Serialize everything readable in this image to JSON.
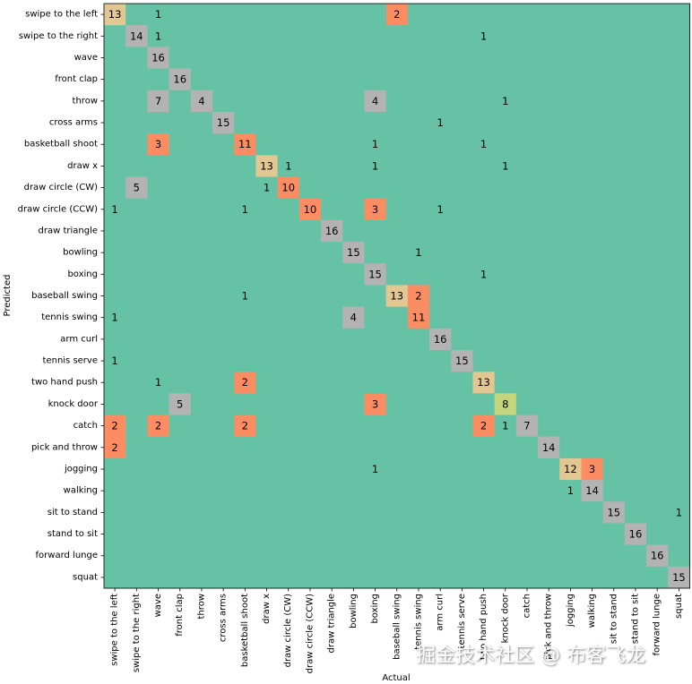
{
  "chart_data": {
    "type": "heatmap",
    "xlabel": "Actual",
    "ylabel": "Predicted",
    "categories": [
      "swipe to the left",
      "swipe to the right",
      "wave",
      "front clap",
      "throw",
      "cross arms",
      "basketball shoot",
      "draw x",
      "draw circle (CW)",
      "draw circle (CCW)",
      "draw triangle",
      "bowling",
      "boxing",
      "baseball swing",
      "tennis swing",
      "arm curl",
      "tennis serve",
      "two hand push",
      "knock door",
      "catch",
      "pick and throw",
      "jogging",
      "walking",
      "sit to stand",
      "stand to sit",
      "forward lunge",
      "squat"
    ],
    "values": [
      [
        13,
        0,
        1,
        0,
        0,
        0,
        0,
        0,
        0,
        0,
        0,
        0,
        0,
        2,
        0,
        0,
        0,
        0,
        0,
        0,
        0,
        0,
        0,
        0,
        0,
        0,
        0
      ],
      [
        0,
        14,
        1,
        0,
        0,
        0,
        0,
        0,
        0,
        0,
        0,
        0,
        0,
        0,
        0,
        0,
        0,
        1,
        0,
        0,
        0,
        0,
        0,
        0,
        0,
        0,
        0
      ],
      [
        0,
        0,
        16,
        0,
        0,
        0,
        0,
        0,
        0,
        0,
        0,
        0,
        0,
        0,
        0,
        0,
        0,
        0,
        0,
        0,
        0,
        0,
        0,
        0,
        0,
        0,
        0
      ],
      [
        0,
        0,
        0,
        16,
        0,
        0,
        0,
        0,
        0,
        0,
        0,
        0,
        0,
        0,
        0,
        0,
        0,
        0,
        0,
        0,
        0,
        0,
        0,
        0,
        0,
        0,
        0
      ],
      [
        0,
        0,
        7,
        0,
        4,
        0,
        0,
        0,
        0,
        0,
        0,
        0,
        4,
        0,
        0,
        0,
        0,
        0,
        1,
        0,
        0,
        0,
        0,
        0,
        0,
        0,
        0
      ],
      [
        0,
        0,
        0,
        0,
        0,
        15,
        0,
        0,
        0,
        0,
        0,
        0,
        0,
        0,
        0,
        1,
        0,
        0,
        0,
        0,
        0,
        0,
        0,
        0,
        0,
        0,
        0
      ],
      [
        0,
        0,
        3,
        0,
        0,
        0,
        11,
        0,
        0,
        0,
        0,
        0,
        1,
        0,
        0,
        0,
        0,
        1,
        0,
        0,
        0,
        0,
        0,
        0,
        0,
        0,
        0
      ],
      [
        0,
        0,
        0,
        0,
        0,
        0,
        0,
        13,
        1,
        0,
        0,
        0,
        1,
        0,
        0,
        0,
        0,
        0,
        1,
        0,
        0,
        0,
        0,
        0,
        0,
        0,
        0
      ],
      [
        0,
        5,
        0,
        0,
        0,
        0,
        0,
        1,
        10,
        0,
        0,
        0,
        0,
        0,
        0,
        0,
        0,
        0,
        0,
        0,
        0,
        0,
        0,
        0,
        0,
        0,
        0
      ],
      [
        1,
        0,
        0,
        0,
        0,
        0,
        1,
        0,
        0,
        10,
        0,
        0,
        3,
        0,
        0,
        1,
        0,
        0,
        0,
        0,
        0,
        0,
        0,
        0,
        0,
        0,
        0
      ],
      [
        0,
        0,
        0,
        0,
        0,
        0,
        0,
        0,
        0,
        0,
        16,
        0,
        0,
        0,
        0,
        0,
        0,
        0,
        0,
        0,
        0,
        0,
        0,
        0,
        0,
        0,
        0
      ],
      [
        0,
        0,
        0,
        0,
        0,
        0,
        0,
        0,
        0,
        0,
        0,
        15,
        0,
        0,
        1,
        0,
        0,
        0,
        0,
        0,
        0,
        0,
        0,
        0,
        0,
        0,
        0
      ],
      [
        0,
        0,
        0,
        0,
        0,
        0,
        0,
        0,
        0,
        0,
        0,
        0,
        15,
        0,
        0,
        0,
        0,
        1,
        0,
        0,
        0,
        0,
        0,
        0,
        0,
        0,
        0
      ],
      [
        0,
        0,
        0,
        0,
        0,
        0,
        1,
        0,
        0,
        0,
        0,
        0,
        0,
        13,
        2,
        0,
        0,
        0,
        0,
        0,
        0,
        0,
        0,
        0,
        0,
        0,
        0
      ],
      [
        1,
        0,
        0,
        0,
        0,
        0,
        0,
        0,
        0,
        0,
        0,
        4,
        0,
        0,
        11,
        0,
        0,
        0,
        0,
        0,
        0,
        0,
        0,
        0,
        0,
        0,
        0
      ],
      [
        0,
        0,
        0,
        0,
        0,
        0,
        0,
        0,
        0,
        0,
        0,
        0,
        0,
        0,
        0,
        16,
        0,
        0,
        0,
        0,
        0,
        0,
        0,
        0,
        0,
        0,
        0
      ],
      [
        1,
        0,
        0,
        0,
        0,
        0,
        0,
        0,
        0,
        0,
        0,
        0,
        0,
        0,
        0,
        0,
        15,
        0,
        0,
        0,
        0,
        0,
        0,
        0,
        0,
        0,
        0
      ],
      [
        0,
        0,
        1,
        0,
        0,
        0,
        2,
        0,
        0,
        0,
        0,
        0,
        0,
        0,
        0,
        0,
        0,
        13,
        0,
        0,
        0,
        0,
        0,
        0,
        0,
        0,
        0
      ],
      [
        0,
        0,
        0,
        5,
        0,
        0,
        0,
        0,
        0,
        0,
        0,
        0,
        3,
        0,
        0,
        0,
        0,
        0,
        8,
        0,
        0,
        0,
        0,
        0,
        0,
        0,
        0
      ],
      [
        2,
        0,
        2,
        0,
        0,
        0,
        2,
        0,
        0,
        0,
        0,
        0,
        0,
        0,
        0,
        0,
        0,
        2,
        1,
        7,
        0,
        0,
        0,
        0,
        0,
        0,
        0
      ],
      [
        2,
        0,
        0,
        0,
        0,
        0,
        0,
        0,
        0,
        0,
        0,
        0,
        0,
        0,
        0,
        0,
        0,
        0,
        0,
        0,
        14,
        0,
        0,
        0,
        0,
        0,
        0
      ],
      [
        0,
        0,
        0,
        0,
        0,
        0,
        0,
        0,
        0,
        0,
        0,
        0,
        1,
        0,
        0,
        0,
        0,
        0,
        0,
        0,
        0,
        12,
        3,
        0,
        0,
        0,
        0
      ],
      [
        0,
        0,
        0,
        0,
        0,
        0,
        0,
        0,
        0,
        0,
        0,
        0,
        0,
        0,
        0,
        0,
        0,
        0,
        0,
        0,
        0,
        1,
        14,
        0,
        0,
        0,
        0
      ],
      [
        0,
        0,
        0,
        0,
        0,
        0,
        0,
        0,
        0,
        0,
        0,
        0,
        0,
        0,
        0,
        0,
        0,
        0,
        0,
        0,
        0,
        0,
        0,
        15,
        0,
        0,
        1
      ],
      [
        0,
        0,
        0,
        0,
        0,
        0,
        0,
        0,
        0,
        0,
        0,
        0,
        0,
        0,
        0,
        0,
        0,
        0,
        0,
        0,
        0,
        0,
        0,
        0,
        16,
        0,
        0
      ],
      [
        0,
        0,
        0,
        0,
        0,
        0,
        0,
        0,
        0,
        0,
        0,
        0,
        0,
        0,
        0,
        0,
        0,
        0,
        0,
        0,
        0,
        0,
        0,
        0,
        0,
        16,
        0
      ],
      [
        0,
        0,
        0,
        0,
        0,
        0,
        0,
        0,
        0,
        0,
        0,
        0,
        0,
        0,
        0,
        0,
        0,
        0,
        0,
        0,
        0,
        0,
        0,
        0,
        0,
        0,
        15
      ]
    ],
    "zero_values_labeled": false,
    "value_colors": {
      "0": "#66c2a5",
      "1": "#66c2a5",
      "2": "#fc8d62",
      "3": "#fc8d62",
      "4": "#b3b3b3",
      "5": "#b3b3b3",
      "7": "#b3b3b3",
      "8": "#c5d57e",
      "10": "#fc8d62",
      "11": "#fc8d62",
      "12": "#e2c792",
      "13": "#e2c792",
      "14": "#b3b3b3",
      "15": "#b3b3b3",
      "16": "#b3b3b3"
    },
    "grid": false
  },
  "watermark": "掘金技术社区 @ 布客飞龙"
}
